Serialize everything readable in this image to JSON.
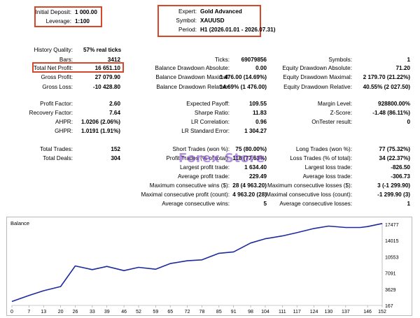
{
  "header": {
    "initial_deposit_label": "Initial Deposit:",
    "initial_deposit_value": "1 000.00",
    "leverage_label": "Leverage:",
    "leverage_value": "1:100",
    "expert_label": "Expert:",
    "expert_value": "Gold Advanced",
    "symbol_label": "Symbol:",
    "symbol_value": "XAUUSD",
    "period_label": "Period:",
    "period_value": "H1 (2026.01.01 - 2026.07.31)"
  },
  "stats": {
    "history_quality_label": "History Quality:",
    "history_quality_value": "57% real ticks",
    "bars_label": "Bars:",
    "bars_value": "3412",
    "ticks_label": "Ticks:",
    "ticks_value": "69079856",
    "symbols_label": "Symbols:",
    "symbols_value": "1",
    "total_net_profit_label": "Total Net Profit:",
    "total_net_profit_value": "16 651.10",
    "bal_dd_abs_label": "Balance Drawdown Absolute:",
    "bal_dd_abs_value": "0.00",
    "eq_dd_abs_label": "Equity Drawdown Absolute:",
    "eq_dd_abs_value": "71.20",
    "gross_profit_label": "Gross Profit:",
    "gross_profit_value": "27 079.90",
    "bal_dd_max_label": "Balance Drawdown Maximal:",
    "bal_dd_max_value": "1 476.00 (14.69%)",
    "eq_dd_max_label": "Equity Drawdown Maximal:",
    "eq_dd_max_value": "2 179.70 (21.22%)",
    "gross_loss_label": "Gross Loss:",
    "gross_loss_value": "-10 428.80",
    "bal_dd_rel_label": "Balance Drawdown Relative:",
    "bal_dd_rel_value": "14.69% (1 476.00)",
    "eq_dd_rel_label": "Equity Drawdown Relative:",
    "eq_dd_rel_value": "40.55% (2 027.50)",
    "profit_factor_label": "Profit Factor:",
    "profit_factor_value": "2.60",
    "expected_payoff_label": "Expected Payoff:",
    "expected_payoff_value": "109.55",
    "margin_level_label": "Margin Level:",
    "margin_level_value": "928800.00%",
    "recovery_factor_label": "Recovery Factor:",
    "recovery_factor_value": "7.64",
    "sharpe_label": "Sharpe Ratio:",
    "sharpe_value": "11.83",
    "zscore_label": "Z-Score:",
    "zscore_value": "-1.48 (86.11%)",
    "ahpr_label": "AHPR:",
    "ahpr_value": "1.0206 (2.06%)",
    "lr_corr_label": "LR Correlation:",
    "lr_corr_value": "0.96",
    "ontester_label": "OnTester result:",
    "ontester_value": "0",
    "ghpr_label": "GHPR:",
    "ghpr_value": "1.0191 (1.91%)",
    "lr_std_label": "LR Standard Error:",
    "lr_std_value": "1 304.27",
    "total_trades_label": "Total Trades:",
    "total_trades_value": "152",
    "short_trades_label": "Short Trades (won %):",
    "short_trades_value": "75 (80.00%)",
    "long_trades_label": "Long Trades (won %):",
    "long_trades_value": "77 (75.32%)",
    "total_deals_label": "Total Deals:",
    "total_deals_value": "304",
    "profit_trades_label": "Profit Trades (% of total):",
    "profit_trades_value": "118 (77.63%)",
    "loss_trades_label": "Loss Trades (% of total):",
    "loss_trades_value": "34 (22.37%)",
    "largest_profit_label": "Largest profit trade:",
    "largest_profit_value": "1 634.40",
    "largest_loss_label": "Largest loss trade:",
    "largest_loss_value": "-826.50",
    "avg_profit_label": "Average profit trade:",
    "avg_profit_value": "229.49",
    "avg_loss_label": "Average loss trade:",
    "avg_loss_value": "-306.73",
    "max_cons_wins_label": "Maximum consecutive wins ($):",
    "max_cons_wins_value": "28 (4 963.20)",
    "max_cons_losses_label": "Maximum consecutive losses ($):",
    "max_cons_losses_value": "3 (-1 299.90)",
    "maximal_cons_profit_label": "Maximal consecutive profit (count):",
    "maximal_cons_profit_value": "4 963.20 (28)",
    "maximal_cons_loss_label": "Maximal consecutive loss (count):",
    "maximal_cons_loss_value": "-1 299.90 (3)",
    "avg_cons_wins_label": "Average consecutive wins:",
    "avg_cons_wins_value": "5",
    "avg_cons_losses_label": "Average consecutive losses:",
    "avg_cons_losses_value": "1"
  },
  "watermark": "Forex Store",
  "colors": {
    "highlight_box": "#d9472b",
    "balance_line": "#1d2a9e"
  },
  "chart_data": {
    "type": "line",
    "title": "Balance",
    "series": [
      {
        "name": "Balance",
        "x": [
          0,
          7,
          13,
          20,
          26,
          33,
          39,
          46,
          52,
          59,
          65,
          72,
          78,
          85,
          91,
          98,
          104,
          111,
          117,
          124,
          130,
          137,
          143,
          146,
          152
        ],
        "values": [
          1000,
          2300,
          3300,
          4200,
          8600,
          7800,
          8500,
          7600,
          8300,
          7900,
          9100,
          9700,
          9900,
          11300,
          11600,
          13500,
          14400,
          15000,
          15700,
          16600,
          17100,
          16800,
          16800,
          17000,
          17650
        ]
      }
    ],
    "x_ticks": [
      "0",
      "7",
      "13",
      "20",
      "26",
      "33",
      "39",
      "46",
      "52",
      "59",
      "65",
      "72",
      "78",
      "85",
      "91",
      "98",
      "104",
      "111",
      "117",
      "124",
      "130",
      "137",
      "146",
      "152"
    ],
    "y_ticks": [
      "17477",
      "14015",
      "10553",
      "7091",
      "3629",
      "167"
    ],
    "xlim": [
      0,
      152
    ],
    "ylim": [
      167,
      17477
    ],
    "grid": false
  }
}
